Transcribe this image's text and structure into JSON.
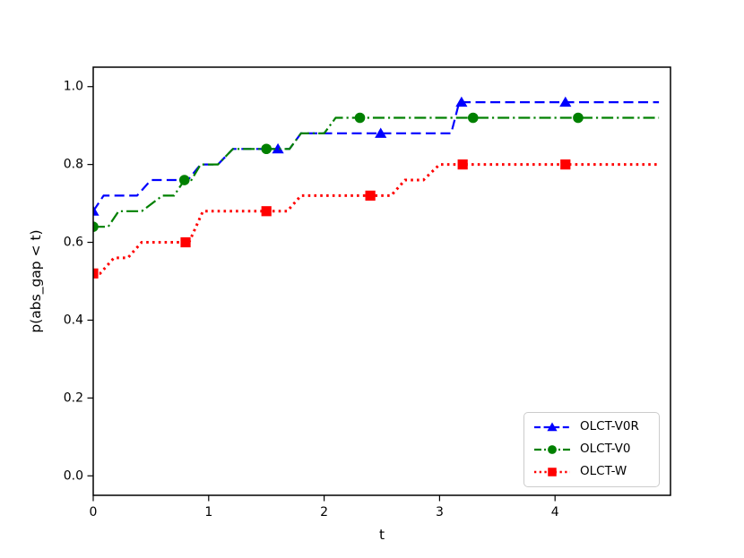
{
  "chart_data": {
    "type": "line",
    "title": "",
    "xlabel": "t",
    "ylabel": "p(abs_gap < t)",
    "xlim": [
      0,
      5.0
    ],
    "ylim": [
      -0.05,
      1.05
    ],
    "xticks": {
      "values": [
        0,
        1,
        2,
        3,
        4
      ],
      "labels": [
        "0",
        "1",
        "2",
        "3",
        "4"
      ]
    },
    "yticks": {
      "values": [
        0.0,
        0.2,
        0.4,
        0.6,
        0.8,
        1.0
      ],
      "labels": [
        "0.0",
        "0.2",
        "0.4",
        "0.6",
        "0.8",
        "1.0"
      ]
    },
    "grid": false,
    "legend_position": "lower right",
    "series": [
      {
        "name": "OLCT-V0R",
        "color": "#0000ff",
        "linestyle": "dashed",
        "marker": "triangle",
        "points": [
          [
            0,
            0.68
          ],
          [
            0.09,
            0.72
          ],
          [
            0.38,
            0.72
          ],
          [
            0.5,
            0.76
          ],
          [
            0.82,
            0.76
          ],
          [
            0.93,
            0.8
          ],
          [
            1.08,
            0.8
          ],
          [
            1.21,
            0.84
          ],
          [
            1.7,
            0.84
          ],
          [
            1.8,
            0.88
          ],
          [
            3.1,
            0.88
          ],
          [
            3.17,
            0.96
          ],
          [
            4.9,
            0.96
          ]
        ],
        "marker_points": [
          [
            0,
            0.68
          ],
          [
            1.6,
            0.84
          ],
          [
            2.49,
            0.88
          ],
          [
            3.19,
            0.96
          ],
          [
            4.09,
            0.96
          ]
        ]
      },
      {
        "name": "OLCT-V0",
        "color": "#008000",
        "linestyle": "dashdot",
        "marker": "circle",
        "points": [
          [
            0,
            0.64
          ],
          [
            0.13,
            0.64
          ],
          [
            0.22,
            0.68
          ],
          [
            0.42,
            0.68
          ],
          [
            0.6,
            0.72
          ],
          [
            0.7,
            0.72
          ],
          [
            0.79,
            0.76
          ],
          [
            0.85,
            0.76
          ],
          [
            0.93,
            0.8
          ],
          [
            1.08,
            0.8
          ],
          [
            1.21,
            0.84
          ],
          [
            1.7,
            0.84
          ],
          [
            1.8,
            0.88
          ],
          [
            2.0,
            0.88
          ],
          [
            2.1,
            0.92
          ],
          [
            4.9,
            0.92
          ]
        ],
        "marker_points": [
          [
            0,
            0.64
          ],
          [
            0.79,
            0.76
          ],
          [
            1.5,
            0.84
          ],
          [
            2.31,
            0.92
          ],
          [
            3.29,
            0.92
          ],
          [
            4.2,
            0.92
          ]
        ]
      },
      {
        "name": "OLCT-W",
        "color": "#ff0000",
        "linestyle": "dotted",
        "marker": "square",
        "points": [
          [
            0,
            0.52
          ],
          [
            0.06,
            0.52
          ],
          [
            0.18,
            0.56
          ],
          [
            0.3,
            0.56
          ],
          [
            0.42,
            0.6
          ],
          [
            0.83,
            0.6
          ],
          [
            0.95,
            0.68
          ],
          [
            1.68,
            0.68
          ],
          [
            1.8,
            0.72
          ],
          [
            2.58,
            0.72
          ],
          [
            2.7,
            0.76
          ],
          [
            2.86,
            0.76
          ],
          [
            3.0,
            0.8
          ],
          [
            4.9,
            0.8
          ]
        ],
        "marker_points": [
          [
            0,
            0.52
          ],
          [
            0.8,
            0.6
          ],
          [
            1.5,
            0.68
          ],
          [
            2.4,
            0.72
          ],
          [
            3.2,
            0.8
          ],
          [
            4.09,
            0.8
          ]
        ]
      }
    ]
  }
}
